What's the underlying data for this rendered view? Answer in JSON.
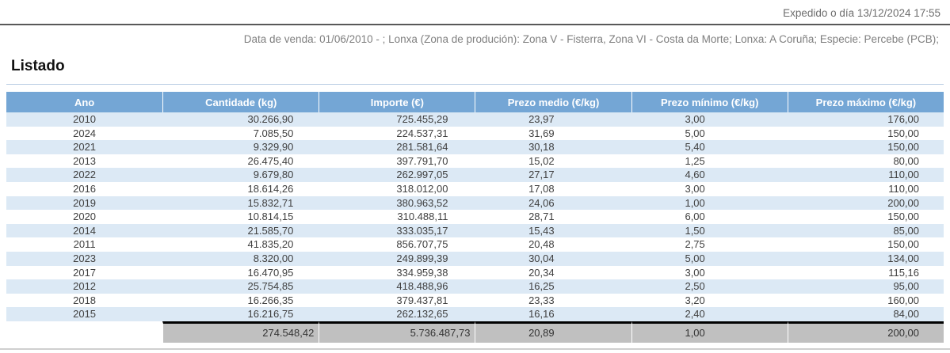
{
  "page": {
    "expedition_label": "Expedido o día 13/12/2024 17:55",
    "filter_summary": "Data de venda: 01/06/2010 - ; Lonxa (Zona de produción): Zona V - Fisterra, Zona VI - Costa da Morte; Lonxa: A Coruña; Especie: Percebe (PCB);",
    "section_title": "Listado"
  },
  "table": {
    "columns": [
      "Ano",
      "Cantidade (kg)",
      "Importe (€)",
      "Prezo medio (€/kg)",
      "Prezo mínimo (€/kg)",
      "Prezo máximo (€/kg)"
    ],
    "rows": [
      [
        "2010",
        "30.266,90",
        "725.455,29",
        "23,97",
        "3,00",
        "176,00"
      ],
      [
        "2024",
        "7.085,50",
        "224.537,31",
        "31,69",
        "5,00",
        "150,00"
      ],
      [
        "2021",
        "9.329,90",
        "281.581,64",
        "30,18",
        "5,40",
        "150,00"
      ],
      [
        "2013",
        "26.475,40",
        "397.791,70",
        "15,02",
        "1,25",
        "80,00"
      ],
      [
        "2022",
        "9.679,80",
        "262.997,05",
        "27,17",
        "4,60",
        "110,00"
      ],
      [
        "2016",
        "18.614,26",
        "318.012,00",
        "17,08",
        "3,00",
        "110,00"
      ],
      [
        "2019",
        "15.832,71",
        "380.963,52",
        "24,06",
        "1,00",
        "200,00"
      ],
      [
        "2020",
        "10.814,15",
        "310.488,11",
        "28,71",
        "6,00",
        "150,00"
      ],
      [
        "2014",
        "21.585,70",
        "333.035,17",
        "15,43",
        "1,50",
        "85,00"
      ],
      [
        "2011",
        "41.835,20",
        "856.707,75",
        "20,48",
        "2,75",
        "150,00"
      ],
      [
        "2023",
        "8.320,00",
        "249.899,39",
        "30,04",
        "5,00",
        "134,00"
      ],
      [
        "2017",
        "16.470,95",
        "334.959,38",
        "20,34",
        "3,00",
        "115,16"
      ],
      [
        "2012",
        "25.754,85",
        "418.488,96",
        "16,25",
        "2,50",
        "95,00"
      ],
      [
        "2018",
        "16.266,35",
        "379.437,81",
        "23,33",
        "3,20",
        "160,00"
      ],
      [
        "2015",
        "16.216,75",
        "262.132,65",
        "16,16",
        "2,40",
        "84,00"
      ]
    ],
    "totals": [
      "",
      "274.548,42",
      "5.736.487,73",
      "20,89",
      "1,00",
      "200,00"
    ]
  },
  "colors": {
    "header_bg": "#74a6d5",
    "alt_row_bg": "#dce9f5",
    "totals_bg": "#c0c0c0",
    "totals_border": "#000000",
    "rule_dark": "#595959",
    "rule_light_blue": "#b7cce2",
    "muted_text": "#7f7f7f"
  }
}
